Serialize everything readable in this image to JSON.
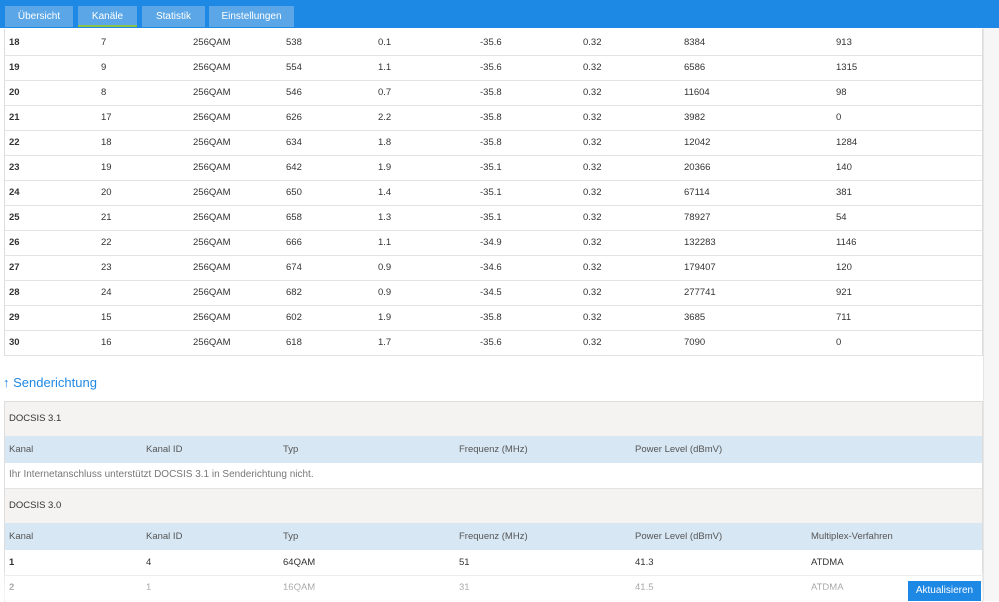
{
  "tabs": [
    "Übersicht",
    "Kanäle",
    "Statistik",
    "Einstellungen"
  ],
  "downstream": {
    "rows": [
      [
        "18",
        "7",
        "256QAM",
        "538",
        "0.1",
        "-35.6",
        "0.32",
        "8384",
        "913"
      ],
      [
        "19",
        "9",
        "256QAM",
        "554",
        "1.1",
        "-35.6",
        "0.32",
        "6586",
        "1315"
      ],
      [
        "20",
        "8",
        "256QAM",
        "546",
        "0.7",
        "-35.8",
        "0.32",
        "11604",
        "98"
      ],
      [
        "21",
        "17",
        "256QAM",
        "626",
        "2.2",
        "-35.8",
        "0.32",
        "3982",
        "0"
      ],
      [
        "22",
        "18",
        "256QAM",
        "634",
        "1.8",
        "-35.8",
        "0.32",
        "12042",
        "1284"
      ],
      [
        "23",
        "19",
        "256QAM",
        "642",
        "1.9",
        "-35.1",
        "0.32",
        "20366",
        "140"
      ],
      [
        "24",
        "20",
        "256QAM",
        "650",
        "1.4",
        "-35.1",
        "0.32",
        "67114",
        "381"
      ],
      [
        "25",
        "21",
        "256QAM",
        "658",
        "1.3",
        "-35.1",
        "0.32",
        "78927",
        "54"
      ],
      [
        "26",
        "22",
        "256QAM",
        "666",
        "1.1",
        "-34.9",
        "0.32",
        "132283",
        "1146"
      ],
      [
        "27",
        "23",
        "256QAM",
        "674",
        "0.9",
        "-34.6",
        "0.32",
        "179407",
        "120"
      ],
      [
        "28",
        "24",
        "256QAM",
        "682",
        "0.9",
        "-34.5",
        "0.32",
        "277741",
        "921"
      ],
      [
        "29",
        "15",
        "256QAM",
        "602",
        "1.9",
        "-35.8",
        "0.32",
        "3685",
        "711"
      ],
      [
        "30",
        "16",
        "256QAM",
        "618",
        "1.7",
        "-35.6",
        "0.32",
        "7090",
        "0"
      ]
    ]
  },
  "upstream": {
    "heading": "↑ Senderichtung",
    "docsis31": {
      "title": "DOCSIS 3.1",
      "header": [
        "Kanal",
        "Kanal ID",
        "Typ",
        "Frequenz (MHz)",
        "Power Level (dBmV)"
      ],
      "note": "Ihr Internetanschluss unterstützt DOCSIS 3.1 in Senderichtung nicht."
    },
    "docsis30": {
      "title": "DOCSIS 3.0",
      "header": [
        "Kanal",
        "Kanal ID",
        "Typ",
        "Frequenz (MHz)",
        "Power Level (dBmV)",
        "Multiplex-Verfahren"
      ],
      "rows": [
        [
          "1",
          "4",
          "64QAM",
          "51",
          "41.3",
          "ATDMA"
        ],
        [
          "2",
          "1",
          "16QAM",
          "31",
          "41.5",
          "ATDMA"
        ]
      ]
    }
  },
  "button": "Aktualisieren"
}
